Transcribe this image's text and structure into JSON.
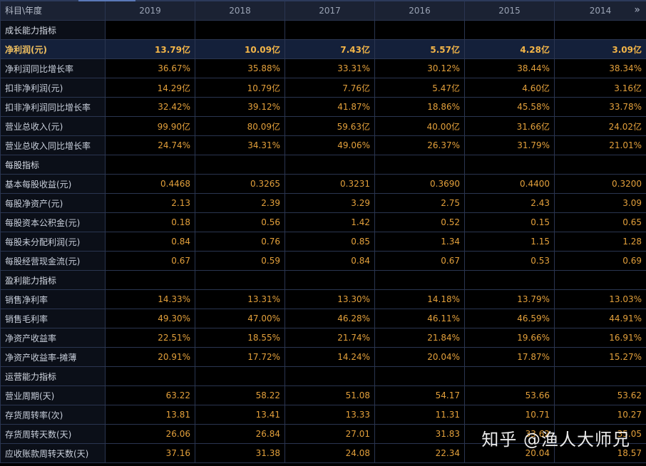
{
  "header": {
    "corner_label": "科目\\年度",
    "years": [
      "2019",
      "2018",
      "2017",
      "2016",
      "2015",
      "2014"
    ]
  },
  "sections": [
    {
      "title": "成长能力指标",
      "rows": [
        {
          "label": "净利润(元)",
          "values": [
            "13.79亿",
            "10.09亿",
            "7.43亿",
            "5.57亿",
            "4.28亿",
            "3.09亿"
          ],
          "highlight": true
        },
        {
          "label": "净利润同比增长率",
          "values": [
            "36.67%",
            "35.88%",
            "33.31%",
            "30.12%",
            "38.44%",
            "38.34%"
          ]
        },
        {
          "label": "扣非净利润(元)",
          "values": [
            "14.29亿",
            "10.79亿",
            "7.76亿",
            "5.47亿",
            "4.60亿",
            "3.16亿"
          ]
        },
        {
          "label": "扣非净利润同比增长率",
          "values": [
            "32.42%",
            "39.12%",
            "41.87%",
            "18.86%",
            "45.58%",
            "33.78%"
          ]
        },
        {
          "label": "营业总收入(元)",
          "values": [
            "99.90亿",
            "80.09亿",
            "59.63亿",
            "40.00亿",
            "31.66亿",
            "24.02亿"
          ]
        },
        {
          "label": "营业总收入同比增长率",
          "values": [
            "24.74%",
            "34.31%",
            "49.06%",
            "26.37%",
            "31.79%",
            "21.01%"
          ]
        }
      ]
    },
    {
      "title": "每股指标",
      "rows": [
        {
          "label": "基本每股收益(元)",
          "values": [
            "0.4468",
            "0.3265",
            "0.3231",
            "0.3690",
            "0.4400",
            "0.3200"
          ]
        },
        {
          "label": "每股净资产(元)",
          "values": [
            "2.13",
            "2.39",
            "3.29",
            "2.75",
            "2.43",
            "3.09"
          ]
        },
        {
          "label": "每股资本公积金(元)",
          "values": [
            "0.18",
            "0.56",
            "1.42",
            "0.52",
            "0.15",
            "0.65"
          ]
        },
        {
          "label": "每股未分配利润(元)",
          "values": [
            "0.84",
            "0.76",
            "0.85",
            "1.34",
            "1.15",
            "1.28"
          ]
        },
        {
          "label": "每股经营现金流(元)",
          "values": [
            "0.67",
            "0.59",
            "0.84",
            "0.67",
            "0.53",
            "0.69"
          ]
        }
      ]
    },
    {
      "title": "盈利能力指标",
      "rows": [
        {
          "label": "销售净利率",
          "values": [
            "14.33%",
            "13.31%",
            "13.30%",
            "14.18%",
            "13.79%",
            "13.03%"
          ]
        },
        {
          "label": "销售毛利率",
          "values": [
            "49.30%",
            "47.00%",
            "46.28%",
            "46.11%",
            "46.59%",
            "44.91%"
          ]
        },
        {
          "label": "净资产收益率",
          "values": [
            "22.51%",
            "18.55%",
            "21.74%",
            "21.84%",
            "19.66%",
            "16.91%"
          ]
        },
        {
          "label": "净资产收益率-摊薄",
          "values": [
            "20.91%",
            "17.72%",
            "14.24%",
            "20.04%",
            "17.87%",
            "15.27%"
          ]
        }
      ]
    },
    {
      "title": "运营能力指标",
      "rows": [
        {
          "label": "营业周期(天)",
          "values": [
            "63.22",
            "58.22",
            "51.08",
            "54.17",
            "53.66",
            "53.62"
          ]
        },
        {
          "label": "存货周转率(次)",
          "values": [
            "13.81",
            "13.41",
            "13.33",
            "11.31",
            "10.71",
            "10.27"
          ]
        },
        {
          "label": "存货周转天数(天)",
          "values": [
            "26.06",
            "26.84",
            "27.01",
            "31.83",
            "33.62",
            "35.05"
          ]
        },
        {
          "label": "应收账款周转天数(天)",
          "values": [
            "37.16",
            "31.38",
            "24.08",
            "22.34",
            "20.04",
            "18.57"
          ]
        }
      ]
    }
  ],
  "watermark": "知乎 @渔人大师兄",
  "colors": {
    "value": "#e3a03b",
    "border": "#2a3550",
    "header_bg": "#1b2233",
    "highlight_bg": "#14203a"
  },
  "icons": {
    "more": "double-chevron-right-icon"
  }
}
